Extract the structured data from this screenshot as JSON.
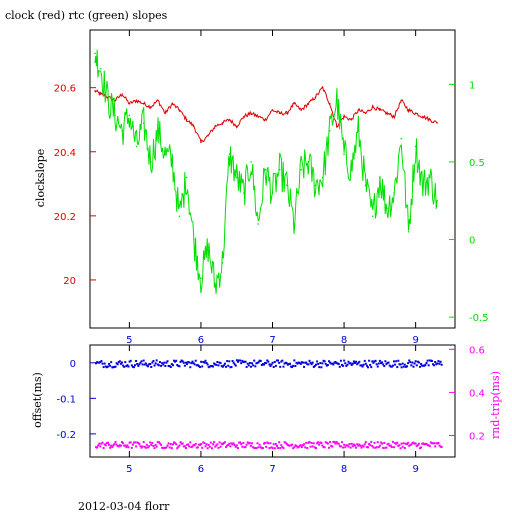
{
  "title": "clock (red) rtc (green) slopes",
  "footer": "2012-03-04 florr",
  "colors": {
    "frame": "#000000",
    "red": "#e00000",
    "green": "#00e000",
    "blue": "#0000e0",
    "magenta": "#ff00ff"
  },
  "chart_data": [
    {
      "type": "line",
      "title": "clock (red) rtc (green) slopes",
      "ylabel": "clockslope",
      "xlim": [
        4.45,
        9.55
      ],
      "ylim": [
        19.85,
        20.78
      ],
      "x_ticks": [
        5,
        6,
        7,
        8,
        9
      ],
      "x_tick_labels": [
        "5",
        "6",
        "7",
        "8",
        "9"
      ],
      "y_ticks": [
        20,
        20.2,
        20.4,
        20.6
      ],
      "y_tick_labels": [
        "20",
        "20.2",
        "20.4",
        "20.6"
      ],
      "y2lim": [
        -0.57,
        1.35
      ],
      "y2_ticks": [
        -0.5,
        0,
        0.5,
        1
      ],
      "y2_tick_labels": [
        "-0.5",
        "0",
        "0.5",
        "1"
      ],
      "series": [
        {
          "color": "red",
          "axis": "left",
          "x": [
            4.52,
            4.6,
            4.7,
            4.8,
            4.9,
            5.0,
            5.1,
            5.2,
            5.3,
            5.4,
            5.5,
            5.6,
            5.7,
            5.8,
            5.9,
            6.0,
            6.1,
            6.2,
            6.3,
            6.4,
            6.5,
            6.6,
            6.7,
            6.8,
            6.9,
            7.0,
            7.1,
            7.2,
            7.3,
            7.4,
            7.5,
            7.6,
            7.7,
            7.8,
            7.9,
            8.0,
            8.1,
            8.2,
            8.3,
            8.4,
            8.5,
            8.6,
            8.7,
            8.8,
            8.9,
            9.0,
            9.1,
            9.2,
            9.3
          ],
          "y": [
            20.59,
            20.58,
            20.57,
            20.56,
            20.58,
            20.55,
            20.56,
            20.55,
            20.54,
            20.56,
            20.52,
            20.55,
            20.53,
            20.5,
            20.48,
            20.43,
            20.45,
            20.48,
            20.49,
            20.5,
            20.48,
            20.51,
            20.52,
            20.51,
            20.5,
            20.53,
            20.52,
            20.52,
            20.55,
            20.53,
            20.55,
            20.57,
            20.6,
            20.55,
            20.48,
            20.51,
            20.5,
            20.53,
            20.52,
            20.54,
            20.53,
            20.52,
            20.51,
            20.56,
            20.53,
            20.52,
            20.51,
            20.5,
            20.49
          ]
        },
        {
          "color": "green",
          "axis": "right",
          "x": [
            4.52,
            4.6,
            4.7,
            4.8,
            4.9,
            5.0,
            5.1,
            5.2,
            5.3,
            5.4,
            5.5,
            5.6,
            5.7,
            5.8,
            5.9,
            6.0,
            6.1,
            6.2,
            6.3,
            6.4,
            6.5,
            6.6,
            6.7,
            6.8,
            6.9,
            7.0,
            7.1,
            7.2,
            7.3,
            7.4,
            7.5,
            7.6,
            7.7,
            7.8,
            7.9,
            8.0,
            8.1,
            8.2,
            8.3,
            8.4,
            8.5,
            8.6,
            8.7,
            8.8,
            8.9,
            9.0,
            9.1,
            9.2,
            9.3
          ],
          "y": [
            1.2,
            1.1,
            0.9,
            0.8,
            0.7,
            0.8,
            0.6,
            0.75,
            0.5,
            0.7,
            0.55,
            0.5,
            0.15,
            0.4,
            0.0,
            -0.25,
            -0.05,
            -0.3,
            -0.15,
            0.55,
            0.4,
            0.3,
            0.5,
            0.1,
            0.45,
            0.3,
            0.45,
            0.35,
            0.1,
            0.45,
            0.5,
            0.35,
            0.4,
            0.7,
            0.9,
            0.55,
            0.45,
            0.7,
            0.35,
            0.15,
            0.4,
            0.2,
            0.3,
            0.65,
            0.05,
            0.6,
            0.35,
            0.4,
            0.25
          ]
        }
      ]
    },
    {
      "type": "scatter",
      "xlabel": "",
      "ylabel": "offset(ms)",
      "y2label": "rnd-trip(ms)",
      "xlim": [
        4.45,
        9.55
      ],
      "ylim": [
        -0.265,
        0.05
      ],
      "x_ticks": [
        5,
        6,
        7,
        8,
        9
      ],
      "x_tick_labels": [
        "5",
        "6",
        "7",
        "8",
        "9"
      ],
      "y_ticks": [
        0,
        -0.1,
        -0.2
      ],
      "y_tick_labels": [
        "0",
        "-0.1",
        "-0.2"
      ],
      "y2lim": [
        0.1,
        0.62
      ],
      "y2_ticks": [
        0.2,
        0.4,
        0.6
      ],
      "y2_tick_labels": [
        "0.2",
        "0.4",
        "0.6"
      ],
      "series": [
        {
          "color": "blue",
          "axis": "left",
          "x_range": [
            4.52,
            9.35
          ],
          "y_center": 0.0,
          "y_spread": 0.01,
          "count": 320
        },
        {
          "color": "magenta",
          "axis": "right",
          "x_range": [
            4.52,
            9.35
          ],
          "y_center": 0.16,
          "y_spread": 0.015,
          "count": 320
        }
      ]
    }
  ]
}
